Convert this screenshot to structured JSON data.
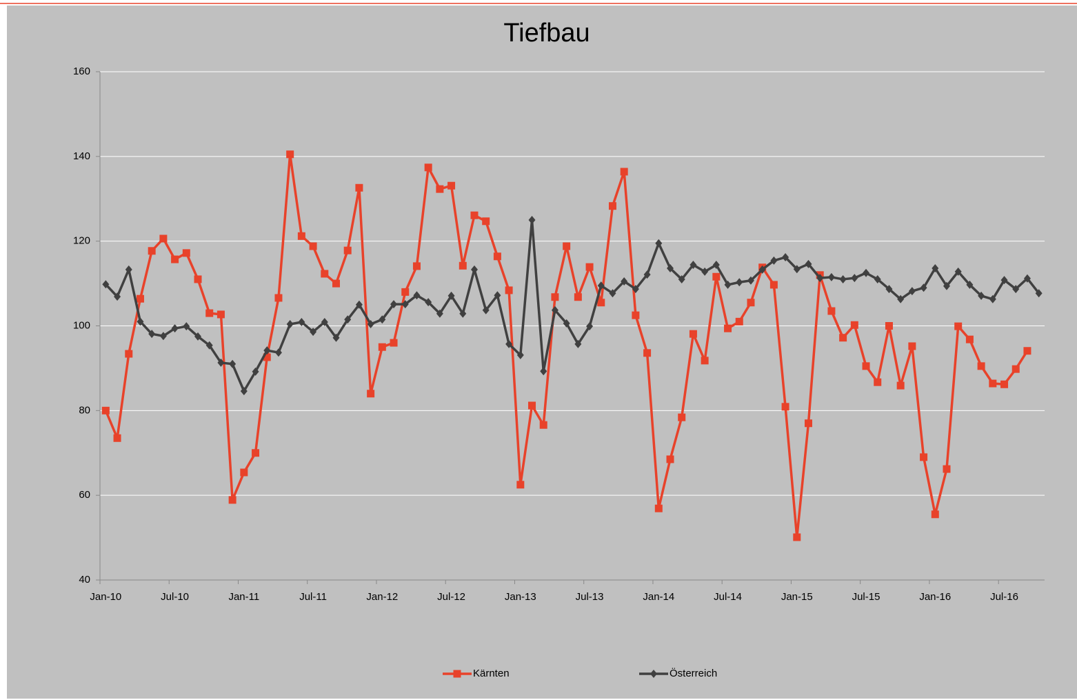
{
  "chart_data": {
    "type": "line",
    "title": "Tiefbau",
    "categories": [
      "Jan-10",
      null,
      null,
      null,
      null,
      null,
      "Jul-10",
      null,
      null,
      null,
      null,
      null,
      "Jan-11",
      null,
      null,
      null,
      null,
      null,
      "Jul-11",
      null,
      null,
      null,
      null,
      null,
      "Jan-12",
      null,
      null,
      null,
      null,
      null,
      "Jul-12",
      null,
      null,
      null,
      null,
      null,
      "Jan-13",
      null,
      null,
      null,
      null,
      null,
      "Jul-13",
      null,
      null,
      null,
      null,
      null,
      "Jan-14",
      null,
      null,
      null,
      null,
      null,
      "Jul-14",
      null,
      null,
      null,
      null,
      null,
      "Jan-15",
      null,
      null,
      null,
      null,
      null,
      "Jul-15",
      null,
      null,
      null,
      null,
      null,
      "Jan-16",
      null,
      null,
      null,
      null,
      null,
      "Jul-16",
      null,
      null,
      null
    ],
    "series": [
      {
        "name": "Kärnten",
        "color": "#e8422a",
        "marker": "square",
        "values": [
          80,
          73.5,
          93.4,
          106.4,
          117.7,
          120.6,
          115.7,
          117.2,
          111,
          103,
          102.7,
          58.9,
          65.4,
          70,
          92.6,
          106.6,
          140.5,
          121.2,
          118.8,
          112.3,
          110,
          117.8,
          132.6,
          84,
          95,
          96,
          108,
          114.1,
          137.4,
          132.3,
          133.1,
          114.2,
          126.1,
          124.7,
          116.4,
          108.4,
          62.5,
          81.2,
          76.6,
          106.8,
          118.8,
          106.8,
          113.9,
          105.5,
          128.3,
          136.4,
          102.5,
          93.6,
          56.9,
          68.5,
          78.4,
          98.1,
          91.8,
          111.6,
          99.4,
          101,
          105.5,
          113.8,
          109.7,
          80.9,
          50.1,
          77,
          112,
          103.5,
          97.2,
          100.2,
          90.5,
          86.7,
          100,
          85.9,
          95.2,
          69,
          55.5,
          66.2,
          99.9,
          96.8,
          90.5,
          86.4,
          86.2,
          89.8,
          94.1,
          null
        ]
      },
      {
        "name": "Österreich",
        "color": "#404040",
        "marker": "diamond",
        "values": [
          109.8,
          106.9,
          113.3,
          101,
          98.1,
          97.6,
          99.4,
          99.9,
          97.5,
          95.4,
          91.3,
          91,
          84.6,
          89.2,
          94.2,
          93.7,
          100.4,
          100.9,
          98.6,
          100.9,
          97.2,
          101.5,
          105,
          100.4,
          101.5,
          105.1,
          105.1,
          107.2,
          105.6,
          102.9,
          107.1,
          102.9,
          113.3,
          103.7,
          107.2,
          95.7,
          93.1,
          125,
          89.3,
          103.7,
          100.6,
          95.7,
          99.9,
          109.5,
          107.7,
          110.5,
          108.7,
          112.1,
          119.5,
          113.6,
          111,
          114.4,
          112.8,
          114.4,
          109.7,
          110.3,
          110.7,
          113.3,
          115.4,
          116.2,
          113.4,
          114.6,
          111.3,
          111.5,
          111,
          111.3,
          112.5,
          111,
          108.7,
          106.3,
          108.2,
          109,
          113.6,
          109.4,
          112.8,
          109.7,
          107.1,
          106.3,
          110.8,
          108.7,
          111.2,
          107.7
        ]
      }
    ],
    "ylim": [
      40,
      160
    ],
    "yticks": [
      40,
      60,
      80,
      100,
      120,
      140,
      160
    ],
    "grid": true,
    "legend": "bottom"
  }
}
